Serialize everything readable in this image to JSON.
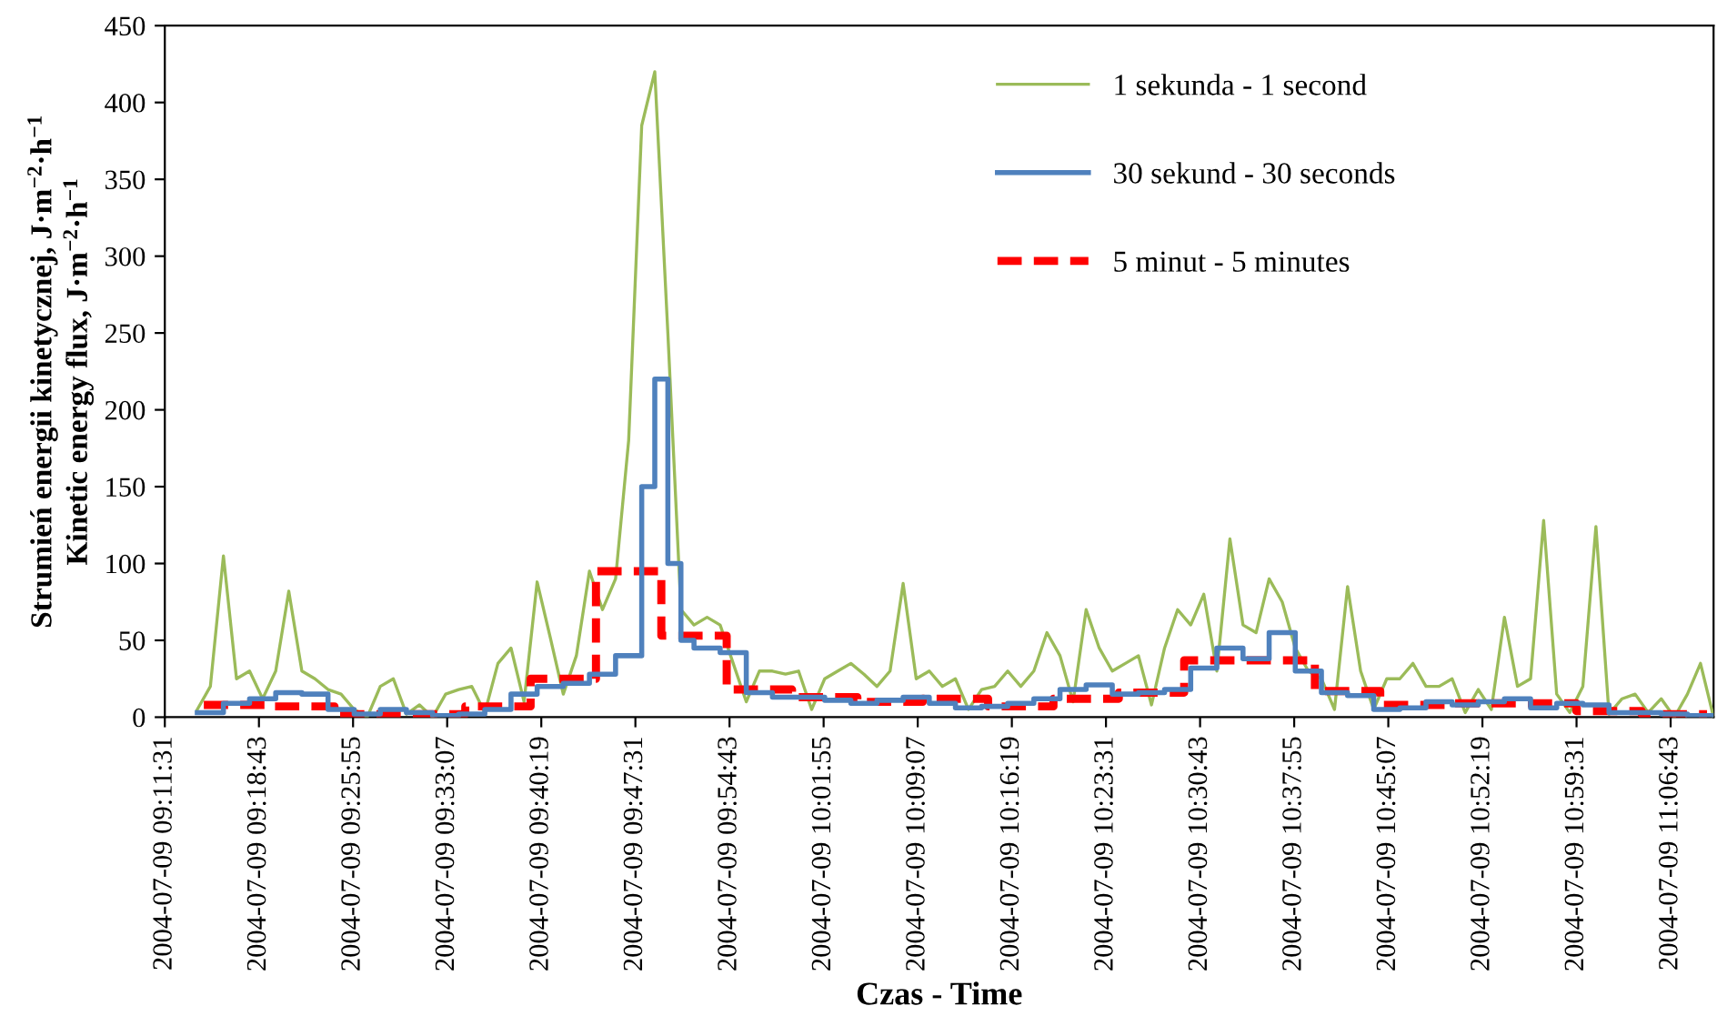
{
  "chart_data": {
    "type": "line",
    "xlabel": "Czas - Time",
    "ylabel": "Strumień energii kinetycznej, J·m$^{−2}$·h$^{−1}$\nKinetic energy flux, J·m$^{−2}$·h$^{−1}$",
    "xlim": [
      "2004-07-09T09:11:31",
      "2004-07-09T11:10"
    ],
    "ylim": [
      0,
      450
    ],
    "yticks": [
      0,
      50,
      100,
      150,
      200,
      250,
      300,
      350,
      400,
      450
    ],
    "xticks": [
      {
        "value": "2004-07-09T09:11:31",
        "label": "2004-07-09 09:11:31"
      },
      {
        "value": "2004-07-09T09:18:43",
        "label": "2004-07-09 09:18:43"
      },
      {
        "value": "2004-07-09T09:25:55",
        "label": "2004-07-09 09:25:55"
      },
      {
        "value": "2004-07-09T09:33:07",
        "label": "2004-07-09 09:33:07"
      },
      {
        "value": "2004-07-09T09:40:19",
        "label": "2004-07-09 09:40:19"
      },
      {
        "value": "2004-07-09T09:47:31",
        "label": "2004-07-09 09:47:31"
      },
      {
        "value": "2004-07-09T09:54:43",
        "label": "2004-07-09 09:54:43"
      },
      {
        "value": "2004-07-09T10:01:55",
        "label": "2004-07-09 10:01:55"
      },
      {
        "value": "2004-07-09T10:09:07",
        "label": "2004-07-09 10:09:07"
      },
      {
        "value": "2004-07-09T10:16:19",
        "label": "2004-07-09 10:16:19"
      },
      {
        "value": "2004-07-09T10:23:31",
        "label": "2004-07-09 10:23:31"
      },
      {
        "value": "2004-07-09T10:30:43",
        "label": "2004-07-09 10:30:43"
      },
      {
        "value": "2004-07-09T10:37:55",
        "label": "2004-07-09 10:37:55"
      },
      {
        "value": "2004-07-09T10:45:07",
        "label": "2004-07-09 10:45:07"
      },
      {
        "value": "2004-07-09T10:52:19",
        "label": "2004-07-09 10:52:19"
      },
      {
        "value": "2004-07-09T10:59:31",
        "label": "2004-07-09 10:59:31"
      },
      {
        "value": "2004-07-09T11:06:43",
        "label": "2004-07-09 11:06:43"
      }
    ],
    "grid": false,
    "legend": "top right",
    "series": [
      {
        "name": "1 sekunda - 1 second",
        "color": "#9bbb59",
        "line_style": "solid",
        "x": [
          "2004-07-09T09:14",
          "2004-07-09T09:15",
          "2004-07-09T09:16",
          "2004-07-09T09:17",
          "2004-07-09T09:18",
          "2004-07-09T09:19",
          "2004-07-09T09:20",
          "2004-07-09T09:21",
          "2004-07-09T09:22",
          "2004-07-09T09:23",
          "2004-07-09T09:24",
          "2004-07-09T09:25",
          "2004-07-09T09:26",
          "2004-07-09T09:27",
          "2004-07-09T09:28",
          "2004-07-09T09:29",
          "2004-07-09T09:30",
          "2004-07-09T09:31",
          "2004-07-09T09:32",
          "2004-07-09T09:33",
          "2004-07-09T09:34",
          "2004-07-09T09:35",
          "2004-07-09T09:36",
          "2004-07-09T09:37",
          "2004-07-09T09:38",
          "2004-07-09T09:39",
          "2004-07-09T09:40",
          "2004-07-09T09:41",
          "2004-07-09T09:42",
          "2004-07-09T09:43",
          "2004-07-09T09:44",
          "2004-07-09T09:45",
          "2004-07-09T09:46",
          "2004-07-09T09:47",
          "2004-07-09T09:48",
          "2004-07-09T09:49",
          "2004-07-09T09:50",
          "2004-07-09T09:51",
          "2004-07-09T09:52",
          "2004-07-09T09:53",
          "2004-07-09T09:54",
          "2004-07-09T09:55",
          "2004-07-09T09:56",
          "2004-07-09T09:57",
          "2004-07-09T09:58",
          "2004-07-09T09:59",
          "2004-07-09T10:00",
          "2004-07-09T10:01",
          "2004-07-09T10:02",
          "2004-07-09T10:03",
          "2004-07-09T10:04",
          "2004-07-09T10:05",
          "2004-07-09T10:06",
          "2004-07-09T10:07",
          "2004-07-09T10:08",
          "2004-07-09T10:09",
          "2004-07-09T10:10",
          "2004-07-09T10:11",
          "2004-07-09T10:12",
          "2004-07-09T10:13",
          "2004-07-09T10:14",
          "2004-07-09T10:15",
          "2004-07-09T10:16",
          "2004-07-09T10:17",
          "2004-07-09T10:18",
          "2004-07-09T10:19",
          "2004-07-09T10:20",
          "2004-07-09T10:21",
          "2004-07-09T10:22",
          "2004-07-09T10:23",
          "2004-07-09T10:24",
          "2004-07-09T10:25",
          "2004-07-09T10:26",
          "2004-07-09T10:27",
          "2004-07-09T10:28",
          "2004-07-09T10:29",
          "2004-07-09T10:30",
          "2004-07-09T10:31",
          "2004-07-09T10:32",
          "2004-07-09T10:33",
          "2004-07-09T10:34",
          "2004-07-09T10:35",
          "2004-07-09T10:36",
          "2004-07-09T10:37",
          "2004-07-09T10:38",
          "2004-07-09T10:39",
          "2004-07-09T10:40",
          "2004-07-09T10:41",
          "2004-07-09T10:42",
          "2004-07-09T10:43",
          "2004-07-09T10:44",
          "2004-07-09T10:45",
          "2004-07-09T10:46",
          "2004-07-09T10:47",
          "2004-07-09T10:48",
          "2004-07-09T10:49",
          "2004-07-09T10:50",
          "2004-07-09T10:51",
          "2004-07-09T10:52",
          "2004-07-09T10:53",
          "2004-07-09T10:54",
          "2004-07-09T10:55",
          "2004-07-09T10:56",
          "2004-07-09T10:57",
          "2004-07-09T10:58",
          "2004-07-09T10:59",
          "2004-07-09T11:00",
          "2004-07-09T11:01",
          "2004-07-09T11:02",
          "2004-07-09T11:03",
          "2004-07-09T11:04",
          "2004-07-09T11:05",
          "2004-07-09T11:06",
          "2004-07-09T11:07",
          "2004-07-09T11:08",
          "2004-07-09T11:09",
          "2004-07-09T11:10"
        ],
        "values": [
          5,
          20,
          105,
          25,
          30,
          12,
          30,
          82,
          30,
          25,
          18,
          15,
          5,
          0,
          20,
          25,
          2,
          8,
          0,
          15,
          18,
          20,
          3,
          35,
          45,
          10,
          88,
          52,
          15,
          40,
          95,
          70,
          90,
          180,
          385,
          420,
          250,
          70,
          60,
          65,
          60,
          35,
          10,
          30,
          30,
          28,
          30,
          5,
          25,
          30,
          35,
          28,
          20,
          30,
          87,
          25,
          30,
          20,
          25,
          5,
          18,
          20,
          30,
          20,
          30,
          55,
          40,
          10,
          70,
          45,
          30,
          35,
          40,
          8,
          45,
          70,
          60,
          80,
          30,
          116,
          60,
          55,
          90,
          75,
          45,
          30,
          25,
          5,
          85,
          30,
          5,
          25,
          25,
          35,
          20,
          20,
          25,
          3,
          18,
          5,
          65,
          20,
          25,
          128,
          15,
          3,
          20,
          124,
          2,
          12,
          15,
          3,
          12,
          0,
          15,
          35,
          0
        ]
      },
      {
        "name": "30 sekund - 30 seconds",
        "color": "#4f81bd",
        "type": "step",
        "line_style": "solid",
        "x": [
          "2004-07-09T09:14",
          "2004-07-09T09:16",
          "2004-07-09T09:18",
          "2004-07-09T09:20",
          "2004-07-09T09:22",
          "2004-07-09T09:24",
          "2004-07-09T09:26",
          "2004-07-09T09:28",
          "2004-07-09T09:30",
          "2004-07-09T09:32",
          "2004-07-09T09:34",
          "2004-07-09T09:36",
          "2004-07-09T09:38",
          "2004-07-09T09:40",
          "2004-07-09T09:42",
          "2004-07-09T09:44",
          "2004-07-09T09:46",
          "2004-07-09T09:48",
          "2004-07-09T09:49",
          "2004-07-09T09:50",
          "2004-07-09T09:51",
          "2004-07-09T09:52",
          "2004-07-09T09:54",
          "2004-07-09T09:56",
          "2004-07-09T09:58",
          "2004-07-09T10:00",
          "2004-07-09T10:02",
          "2004-07-09T10:04",
          "2004-07-09T10:06",
          "2004-07-09T10:08",
          "2004-07-09T10:10",
          "2004-07-09T10:12",
          "2004-07-09T10:14",
          "2004-07-09T10:16",
          "2004-07-09T10:18",
          "2004-07-09T10:20",
          "2004-07-09T10:22",
          "2004-07-09T10:24",
          "2004-07-09T10:26",
          "2004-07-09T10:28",
          "2004-07-09T10:30",
          "2004-07-09T10:32",
          "2004-07-09T10:34",
          "2004-07-09T10:36",
          "2004-07-09T10:38",
          "2004-07-09T10:40",
          "2004-07-09T10:42",
          "2004-07-09T10:44",
          "2004-07-09T10:46",
          "2004-07-09T10:48",
          "2004-07-09T10:50",
          "2004-07-09T10:52",
          "2004-07-09T10:54",
          "2004-07-09T10:56",
          "2004-07-09T10:58",
          "2004-07-09T11:00",
          "2004-07-09T11:02",
          "2004-07-09T11:04",
          "2004-07-09T11:06",
          "2004-07-09T11:08",
          "2004-07-09T11:10"
        ],
        "values": [
          3,
          9,
          12,
          16,
          15,
          5,
          2,
          5,
          3,
          1,
          2,
          5,
          15,
          20,
          22,
          28,
          40,
          150,
          220,
          100,
          50,
          45,
          42,
          16,
          13,
          13,
          11,
          9,
          11,
          13,
          9,
          6,
          7,
          9,
          12,
          18,
          21,
          15,
          16,
          18,
          32,
          45,
          38,
          55,
          30,
          16,
          14,
          5,
          6,
          10,
          8,
          10,
          12,
          6,
          9,
          8,
          3,
          3,
          2,
          1,
          0
        ]
      },
      {
        "name": "5 minut - 5 minutes",
        "color": "#ff0000",
        "type": "step",
        "line_style": "dashed",
        "x": [
          "2004-07-09T09:14:30",
          "2004-07-09T09:19:30",
          "2004-07-09T09:24:30",
          "2004-07-09T09:29:30",
          "2004-07-09T09:34:30",
          "2004-07-09T09:39:30",
          "2004-07-09T09:44:30",
          "2004-07-09T09:49:30",
          "2004-07-09T09:54:30",
          "2004-07-09T09:59:30",
          "2004-07-09T10:04:30",
          "2004-07-09T10:09:30",
          "2004-07-09T10:14:30",
          "2004-07-09T10:19:30",
          "2004-07-09T10:24:30",
          "2004-07-09T10:29:30",
          "2004-07-09T10:34:30",
          "2004-07-09T10:39:30",
          "2004-07-09T10:44:30",
          "2004-07-09T10:49:30",
          "2004-07-09T10:54:30",
          "2004-07-09T10:59:30",
          "2004-07-09T11:04:30",
          "2004-07-09T11:09:30"
        ],
        "values": [
          8,
          7,
          2,
          2,
          7,
          25,
          95,
          53,
          18,
          13,
          10,
          12,
          7,
          12,
          16,
          37,
          37,
          17,
          8,
          9,
          9,
          4,
          2,
          2
        ]
      }
    ]
  }
}
